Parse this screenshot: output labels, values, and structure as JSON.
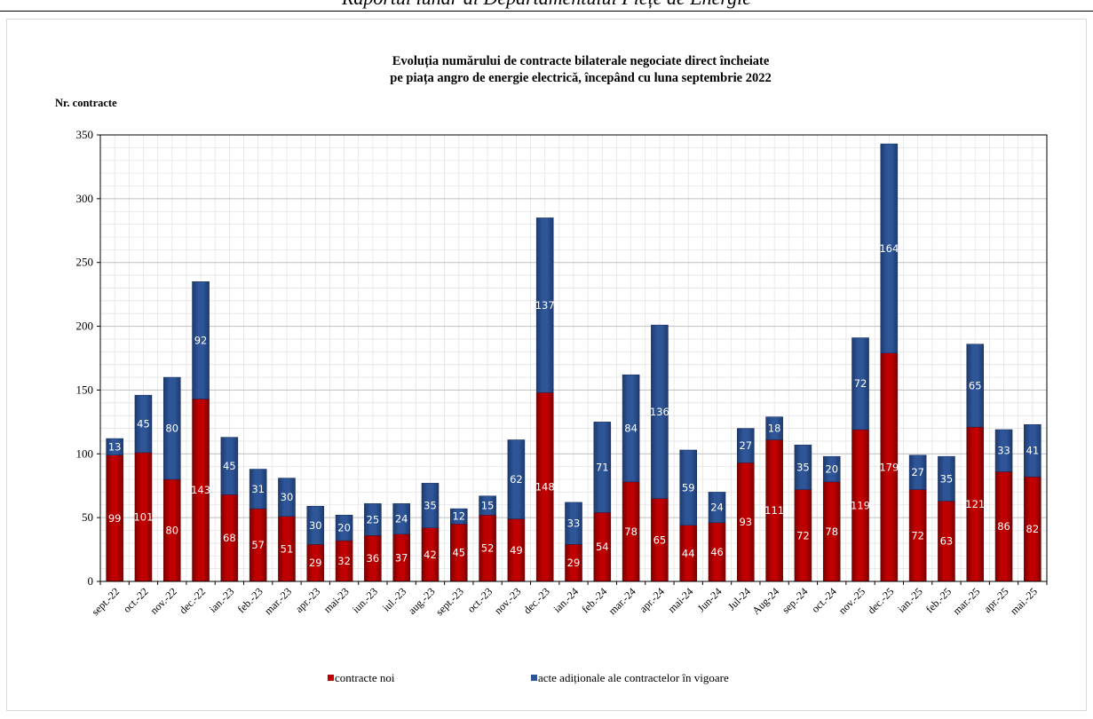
{
  "header": {
    "text": "Raportul lunar al Departamentului Piețe de Energie"
  },
  "chart_data": {
    "type": "bar",
    "stacked": true,
    "title_lines": [
      "Evoluția numărului de contracte bilaterale negociate direct încheiate",
      "pe piața angro de energie electrică, începând cu luna septembrie 2022"
    ],
    "ylabel": "Nr. contracte",
    "xlabel": "",
    "ylim": [
      0,
      350
    ],
    "yticks": [
      0,
      50,
      100,
      150,
      200,
      250,
      300,
      350
    ],
    "grid": true,
    "legend_position": "bottom",
    "categories": [
      "sept.-22",
      "oct.-22",
      "nov.-22",
      "dec.-22",
      "ian.-23",
      "feb.-23",
      "mar.-23",
      "apr.-23",
      "mai-23",
      "iun.-23",
      "iul.-23",
      "aug.-23",
      "sept.-23",
      "oct.-23",
      "nov.-23",
      "dec.-23",
      "ian.-24",
      "feb.-24",
      "mar.-24",
      "apr.-24",
      "mai-24",
      "Jun-24",
      "Jul-24",
      "Aug-24",
      "sep.-24",
      "oct.-24",
      "nov.-25",
      "dec.-25",
      "ian.-25",
      "feb.-25",
      "mar.-25",
      "apr.-25",
      "mai.-25"
    ],
    "series": [
      {
        "name": "contracte noi",
        "color": "#c00000",
        "values": [
          99,
          101,
          80,
          143,
          68,
          57,
          51,
          29,
          32,
          36,
          37,
          42,
          45,
          52,
          49,
          148,
          29,
          54,
          78,
          65,
          44,
          46,
          93,
          111,
          72,
          78,
          119,
          179,
          72,
          63,
          121,
          86,
          82
        ]
      },
      {
        "name": "acte adiționale ale contractelor în vigoare",
        "color": "#2e5597",
        "values": [
          13,
          45,
          80,
          92,
          45,
          31,
          30,
          30,
          20,
          25,
          24,
          35,
          12,
          15,
          62,
          137,
          33,
          71,
          84,
          136,
          59,
          24,
          27,
          18,
          35,
          20,
          72,
          164,
          27,
          35,
          65,
          33,
          41
        ]
      }
    ]
  }
}
